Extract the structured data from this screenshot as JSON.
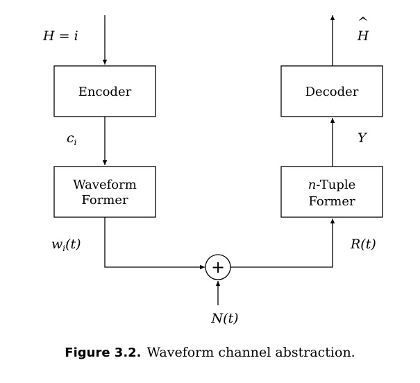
{
  "blocks": {
    "encoder": "Encoder",
    "decoder": "Decoder",
    "waveform_former_line1": "Waveform",
    "waveform_former_line2": "Former",
    "ntuple_var": "n",
    "ntuple_rest": "-Tuple",
    "ntuple_former_line2": "Former"
  },
  "signals": {
    "input_var": "H",
    "input_eq": " = ",
    "input_val": "i",
    "output_hat": "^",
    "output_var": "H",
    "codeword_var": "c",
    "codeword_sub": "i",
    "tx_waveform_var": "w",
    "tx_waveform_sub": "i",
    "tx_waveform_arg": "(t)",
    "rx_waveform": "R(t)",
    "noise": "N(t)",
    "decoder_input": "Y",
    "adder_symbol": "+"
  },
  "caption": {
    "label": "Figure 3.2.",
    "text": "Waveform channel abstraction."
  }
}
